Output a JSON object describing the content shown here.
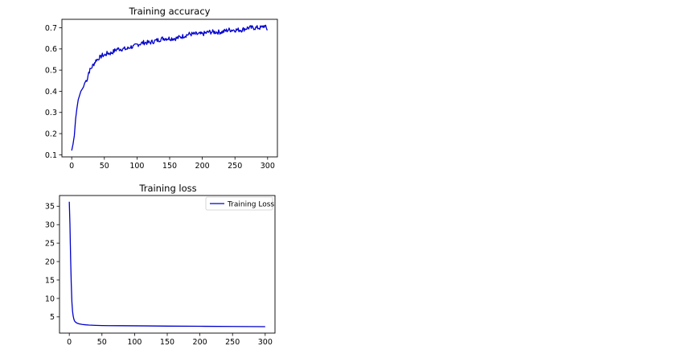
{
  "chart_data": [
    {
      "type": "line",
      "title": "Training accuracy",
      "xlabel": "",
      "ylabel": "",
      "xlim": [
        -15,
        315
      ],
      "ylim": [
        0.09,
        0.74
      ],
      "xticks": [
        "0",
        "50",
        "100",
        "150",
        "200",
        "250",
        "300"
      ],
      "yticks": [
        "0.1",
        "0.2",
        "0.3",
        "0.4",
        "0.5",
        "0.6",
        "0.7"
      ],
      "grid": false,
      "legend": "none",
      "series": [
        {
          "color": "#0000cc",
          "x": [
            0,
            2,
            4,
            6,
            8,
            10,
            12,
            14,
            16,
            18,
            20,
            22,
            24,
            26,
            28,
            30,
            32,
            34,
            36,
            38,
            40,
            42,
            44,
            46,
            48,
            50,
            55,
            60,
            65,
            70,
            75,
            80,
            85,
            90,
            95,
            100,
            110,
            120,
            130,
            140,
            150,
            160,
            170,
            180,
            190,
            200,
            210,
            220,
            230,
            240,
            250,
            260,
            270,
            280,
            290,
            295,
            300
          ],
          "values": [
            0.12,
            0.15,
            0.19,
            0.27,
            0.32,
            0.36,
            0.38,
            0.4,
            0.41,
            0.42,
            0.44,
            0.45,
            0.46,
            0.49,
            0.5,
            0.51,
            0.52,
            0.53,
            0.54,
            0.55,
            0.55,
            0.56,
            0.56,
            0.57,
            0.57,
            0.57,
            0.58,
            0.58,
            0.59,
            0.6,
            0.6,
            0.6,
            0.6,
            0.61,
            0.61,
            0.62,
            0.63,
            0.63,
            0.64,
            0.65,
            0.65,
            0.65,
            0.66,
            0.67,
            0.67,
            0.67,
            0.68,
            0.68,
            0.68,
            0.69,
            0.69,
            0.69,
            0.7,
            0.7,
            0.7,
            0.71,
            0.69
          ]
        }
      ]
    },
    {
      "type": "line",
      "title": "Training loss",
      "xlabel": "",
      "ylabel": "",
      "xlim": [
        -15,
        315
      ],
      "ylim": [
        0.6,
        37.9
      ],
      "xticks": [
        "0",
        "50",
        "100",
        "150",
        "200",
        "250",
        "300"
      ],
      "yticks": [
        "5",
        "10",
        "15",
        "20",
        "25",
        "30",
        "35"
      ],
      "grid": false,
      "legend": "top-right",
      "series": [
        {
          "name": "Training Loss",
          "color": "#0000cc",
          "x": [
            0,
            1,
            2,
            3,
            4,
            5,
            6,
            7,
            8,
            10,
            12,
            15,
            20,
            25,
            30,
            40,
            50,
            60,
            80,
            100,
            120,
            150,
            200,
            250,
            300
          ],
          "values": [
            36.2,
            30.0,
            21.0,
            14.0,
            9.0,
            6.5,
            5.2,
            4.4,
            3.9,
            3.5,
            3.3,
            3.1,
            2.95,
            2.85,
            2.78,
            2.7,
            2.65,
            2.62,
            2.6,
            2.58,
            2.55,
            2.5,
            2.45,
            2.4,
            2.35
          ]
        }
      ]
    }
  ]
}
